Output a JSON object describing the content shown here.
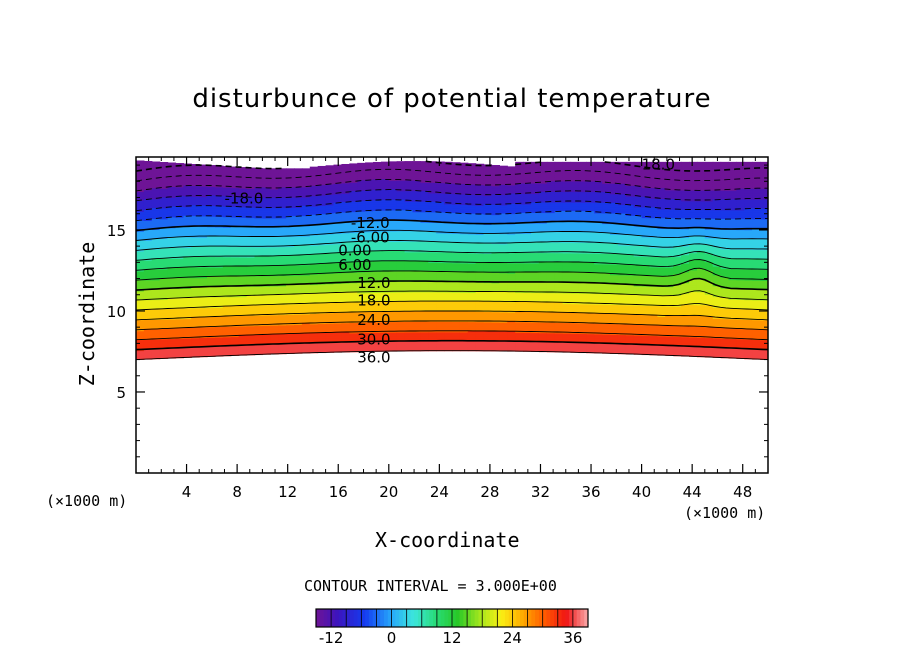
{
  "chart_data": {
    "type": "heatmap",
    "title": "disturbunce of potential temperature",
    "xlabel": "X-coordinate",
    "ylabel": "Z-coordinate",
    "x_unit": "(×1000 m)",
    "z_unit": "(×1000 m)",
    "xlim": [
      0,
      50
    ],
    "ylim": [
      0,
      19.5
    ],
    "x_ticks": [
      4,
      8,
      12,
      16,
      20,
      24,
      28,
      32,
      36,
      40,
      44,
      48
    ],
    "y_ticks": [
      5,
      10,
      15
    ],
    "contour_interval_text": "CONTOUR INTERVAL = 3.000E+00",
    "colorbar": {
      "min": -15,
      "max": 39,
      "step": 3,
      "ticks": [
        -12,
        0,
        12,
        24,
        36
      ]
    },
    "contour_labels": [
      {
        "text": "18.0",
        "x": 40,
        "z": 19.1
      },
      {
        "text": "-18.0",
        "x": 7,
        "z": 17.0
      },
      {
        "text": "-12.0",
        "x": 17,
        "z": 15.5
      },
      {
        "text": "-6.00",
        "x": 17,
        "z": 14.6
      },
      {
        "text": "0.00",
        "x": 16,
        "z": 13.8
      },
      {
        "text": "6.00",
        "x": 16,
        "z": 12.9
      },
      {
        "text": "12.0",
        "x": 17.5,
        "z": 11.8
      },
      {
        "text": "18.0",
        "x": 17.5,
        "z": 10.7
      },
      {
        "text": "24.0",
        "x": 17.5,
        "z": 9.5
      },
      {
        "text": "30.0",
        "x": 17.5,
        "z": 8.3
      },
      {
        "text": "36.0",
        "x": 17.5,
        "z": 7.2
      }
    ],
    "field": {
      "description_levels": "isotherms of potential temperature disturbance",
      "top_of_field_z": 19.3,
      "bottom_of_field_z": 7.0,
      "levels_low_to_high_z": [
        39,
        36,
        33,
        30,
        27,
        24,
        21,
        18,
        15,
        12,
        9,
        6,
        3,
        0,
        -3,
        -6,
        -9,
        -12,
        -15,
        -18
      ]
    }
  }
}
